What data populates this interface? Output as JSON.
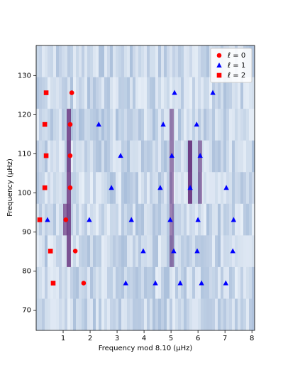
{
  "chart_data": {
    "type": "scatter",
    "xlabel": "Frequency mod 8.10 (μHz)",
    "ylabel": "Frequency (μHz)",
    "xlim": [
      0,
      8.1
    ],
    "ylim": [
      64.8,
      137.7
    ],
    "xticks": [
      1,
      2,
      3,
      4,
      5,
      6,
      7,
      8
    ],
    "yticks": [
      70,
      80,
      90,
      100,
      110,
      120,
      130
    ],
    "legend": "upper right",
    "series": [
      {
        "name": "ℓ = 0",
        "color": "#ff0000",
        "marker": "circle",
        "x": [
          1.32,
          1.26,
          1.26,
          1.26,
          1.1,
          1.45,
          1.76
        ],
        "values": [
          125.6,
          117.5,
          109.5,
          101.3,
          93.1,
          85.1,
          76.9
        ]
      },
      {
        "name": "ℓ = 1",
        "color": "#0000ff",
        "marker": "triangle",
        "x": [
          5.13,
          6.55,
          2.32,
          4.71,
          5.95,
          3.13,
          5.03,
          6.08,
          2.79,
          4.6,
          5.71,
          7.05,
          0.42,
          1.97,
          3.53,
          4.97,
          6.0,
          7.32,
          3.97,
          5.1,
          5.97,
          7.29,
          3.32,
          4.42,
          5.34,
          6.13,
          7.03
        ],
        "values": [
          125.6,
          125.6,
          117.5,
          117.5,
          117.5,
          109.5,
          109.5,
          109.5,
          101.3,
          101.3,
          101.3,
          101.3,
          93.1,
          93.1,
          93.1,
          93.1,
          93.1,
          93.1,
          85.1,
          85.1,
          85.1,
          85.1,
          76.9,
          76.9,
          76.9,
          76.9,
          76.9
        ]
      },
      {
        "name": "ℓ = 2",
        "color": "#ff0000",
        "marker": "square",
        "x": [
          0.37,
          0.32,
          0.37,
          0.32,
          0.13,
          0.53,
          0.63
        ],
        "values": [
          125.6,
          117.5,
          109.5,
          101.3,
          93.1,
          85.1,
          76.9
        ]
      }
    ]
  }
}
